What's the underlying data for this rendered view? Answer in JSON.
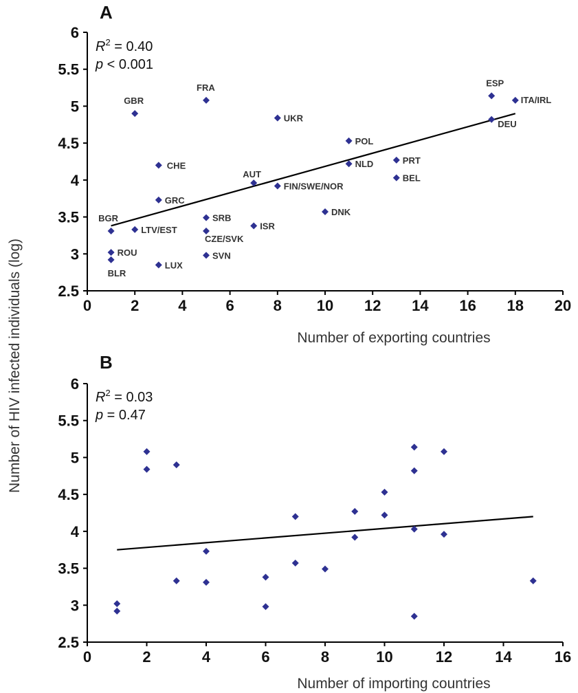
{
  "figure": {
    "shared_ylabel": "Number of HIV infected individuals  (log)"
  },
  "chart_data": [
    {
      "type": "scatter",
      "panel": "A",
      "xlabel": "Number of exporting countries",
      "xlim": [
        0,
        20
      ],
      "ylim": [
        2.5,
        6
      ],
      "xticks": [
        "0",
        "2",
        "4",
        "6",
        "8",
        "10",
        "12",
        "14",
        "16",
        "18",
        "20"
      ],
      "yticks": [
        "2.5",
        "3",
        "3.5",
        "4",
        "4.5",
        "5",
        "5.5",
        "6"
      ],
      "stats": {
        "r2_label": "R",
        "r2_value": "= 0.40",
        "p_label": "p",
        "p_value": "< 0.001"
      },
      "trendline": {
        "x": [
          1,
          18
        ],
        "y": [
          3.38,
          4.9
        ]
      },
      "marker_color": "#2e3192",
      "points": [
        {
          "label": "ESP",
          "x": 17,
          "y": 5.14
        },
        {
          "label": "ITA/IRL",
          "x": 18,
          "y": 5.08
        },
        {
          "label": "FRA",
          "x": 5,
          "y": 5.08
        },
        {
          "label": "GBR",
          "x": 2,
          "y": 4.9
        },
        {
          "label": "UKR",
          "x": 8,
          "y": 4.84
        },
        {
          "label": "DEU",
          "x": 17,
          "y": 4.82
        },
        {
          "label": "POL",
          "x": 11,
          "y": 4.53
        },
        {
          "label": "PRT",
          "x": 13,
          "y": 4.27
        },
        {
          "label": "NLD",
          "x": 11,
          "y": 4.22
        },
        {
          "label": "CHE",
          "x": 3,
          "y": 4.2
        },
        {
          "label": "BEL",
          "x": 13,
          "y": 4.03
        },
        {
          "label": "AUT",
          "x": 7,
          "y": 3.96
        },
        {
          "label": "FIN/SWE/NOR",
          "x": 8,
          "y": 3.92
        },
        {
          "label": "GRC",
          "x": 3,
          "y": 3.73
        },
        {
          "label": "DNK",
          "x": 10,
          "y": 3.57
        },
        {
          "label": "SRB",
          "x": 5,
          "y": 3.49
        },
        {
          "label": "ISR",
          "x": 7,
          "y": 3.38
        },
        {
          "label": "LTV/EST",
          "x": 2,
          "y": 3.33
        },
        {
          "label": "BGR",
          "x": 1,
          "y": 3.31
        },
        {
          "label": "CZE/SVK",
          "x": 5,
          "y": 3.31
        },
        {
          "label": "ROU",
          "x": 1,
          "y": 3.02
        },
        {
          "label": "SVN",
          "x": 5,
          "y": 2.98
        },
        {
          "label": "BLR",
          "x": 1,
          "y": 2.92
        },
        {
          "label": "LUX",
          "x": 3,
          "y": 2.85
        }
      ]
    },
    {
      "type": "scatter",
      "panel": "B",
      "xlabel": "Number of importing countries",
      "xlim": [
        0,
        16
      ],
      "ylim": [
        2.5,
        6
      ],
      "xticks": [
        "0",
        "2",
        "4",
        "6",
        "8",
        "10",
        "12",
        "14",
        "16"
      ],
      "yticks": [
        "2.5",
        "3",
        "3.5",
        "4",
        "4.5",
        "5",
        "5.5",
        "6"
      ],
      "stats": {
        "r2_label": "R",
        "r2_value": "= 0.03",
        "p_label": "p",
        "p_value": "= 0.47"
      },
      "trendline": {
        "x": [
          1,
          15
        ],
        "y": [
          3.75,
          4.2
        ]
      },
      "marker_color": "#2e3192",
      "points": [
        {
          "x": 11,
          "y": 5.14
        },
        {
          "x": 2,
          "y": 5.08
        },
        {
          "x": 12,
          "y": 5.08
        },
        {
          "x": 3,
          "y": 4.9
        },
        {
          "x": 2,
          "y": 4.84
        },
        {
          "x": 11,
          "y": 4.82
        },
        {
          "x": 10,
          "y": 4.53
        },
        {
          "x": 9,
          "y": 4.27
        },
        {
          "x": 10,
          "y": 4.22
        },
        {
          "x": 7,
          "y": 4.2
        },
        {
          "x": 11,
          "y": 4.03
        },
        {
          "x": 12,
          "y": 3.96
        },
        {
          "x": 9,
          "y": 3.92
        },
        {
          "x": 4,
          "y": 3.73
        },
        {
          "x": 7,
          "y": 3.57
        },
        {
          "x": 8,
          "y": 3.49
        },
        {
          "x": 6,
          "y": 3.38
        },
        {
          "x": 3,
          "y": 3.33
        },
        {
          "x": 15,
          "y": 3.33
        },
        {
          "x": 4,
          "y": 3.31
        },
        {
          "x": 1,
          "y": 3.02
        },
        {
          "x": 6,
          "y": 2.98
        },
        {
          "x": 1,
          "y": 2.92
        },
        {
          "x": 11,
          "y": 2.85
        }
      ]
    }
  ]
}
